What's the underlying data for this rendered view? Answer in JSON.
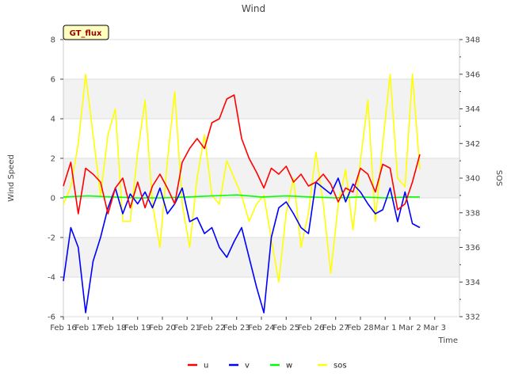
{
  "chart_data": {
    "type": "line",
    "title": "Wind",
    "xlabel": "Time",
    "ylabel": "Wind Speed",
    "y2label": "SOS",
    "badge": "GT_flux",
    "x_range_days": [
      0,
      16
    ],
    "ylim": [
      -6,
      8
    ],
    "y2lim": [
      332,
      348
    ],
    "x_ticks": [
      {
        "day": 0,
        "label": "Feb 16"
      },
      {
        "day": 1,
        "label": "Feb 17"
      },
      {
        "day": 2,
        "label": "Feb 18"
      },
      {
        "day": 3,
        "label": "Feb 19"
      },
      {
        "day": 4,
        "label": "Feb 20"
      },
      {
        "day": 5,
        "label": "Feb 21"
      },
      {
        "day": 6,
        "label": "Feb 22"
      },
      {
        "day": 7,
        "label": "Feb 23"
      },
      {
        "day": 8,
        "label": "Feb 24"
      },
      {
        "day": 9,
        "label": "Feb 25"
      },
      {
        "day": 10,
        "label": "Feb 26"
      },
      {
        "day": 11,
        "label": "Feb 27"
      },
      {
        "day": 12,
        "label": "Feb 28"
      },
      {
        "day": 13,
        "label": "Mar 1"
      },
      {
        "day": 14,
        "label": "Mar 2"
      },
      {
        "day": 15,
        "label": "Mar 3"
      }
    ],
    "y_ticks": [
      "-6",
      "-4",
      "-2",
      "0",
      "2",
      "4",
      "6",
      "8"
    ],
    "y2_ticks": [
      "332",
      "334",
      "336",
      "338",
      "340",
      "342",
      "344",
      "346",
      "348"
    ],
    "legend_position": "bottom-center",
    "series": [
      {
        "name": "u",
        "axis": "left",
        "color": "#ff0000",
        "x": [
          0.0,
          0.3,
          0.6,
          0.9,
          1.2,
          1.5,
          1.8,
          2.1,
          2.4,
          2.7,
          3.0,
          3.3,
          3.6,
          3.9,
          4.2,
          4.5,
          4.8,
          5.1,
          5.4,
          5.7,
          6.0,
          6.3,
          6.6,
          6.9,
          7.2,
          7.5,
          7.8,
          8.1,
          8.4,
          8.7,
          9.0,
          9.3,
          9.6,
          9.9,
          10.2,
          10.5,
          10.8,
          11.1,
          11.4,
          11.7,
          12.0,
          12.3,
          12.6,
          12.9,
          13.2,
          13.5,
          13.8,
          14.1,
          14.4
        ],
        "y": [
          0.6,
          1.8,
          -0.8,
          1.5,
          1.2,
          0.8,
          -0.8,
          0.5,
          1.0,
          -0.5,
          0.8,
          -0.5,
          0.6,
          1.2,
          0.5,
          -0.3,
          1.8,
          2.5,
          3.0,
          2.5,
          3.8,
          4.0,
          5.0,
          5.2,
          3.0,
          2.0,
          1.3,
          0.5,
          1.5,
          1.2,
          1.6,
          0.8,
          1.2,
          0.6,
          0.8,
          1.2,
          0.7,
          -0.2,
          0.5,
          0.3,
          1.5,
          1.2,
          0.3,
          1.7,
          1.5,
          -0.6,
          -0.3,
          0.8,
          2.2
        ]
      },
      {
        "name": "v",
        "axis": "left",
        "color": "#0000ff",
        "x": [
          0.0,
          0.3,
          0.6,
          0.9,
          1.2,
          1.5,
          1.8,
          2.1,
          2.4,
          2.7,
          3.0,
          3.3,
          3.6,
          3.9,
          4.2,
          4.5,
          4.8,
          5.1,
          5.4,
          5.7,
          6.0,
          6.3,
          6.6,
          6.9,
          7.2,
          7.5,
          7.8,
          8.1,
          8.4,
          8.7,
          9.0,
          9.3,
          9.6,
          9.9,
          10.2,
          10.5,
          10.8,
          11.1,
          11.4,
          11.7,
          12.0,
          12.3,
          12.6,
          12.9,
          13.2,
          13.5,
          13.8,
          14.1,
          14.4
        ],
        "y": [
          -4.2,
          -1.5,
          -2.5,
          -5.8,
          -3.2,
          -2.0,
          -0.5,
          0.5,
          -0.8,
          0.2,
          -0.3,
          0.3,
          -0.5,
          0.5,
          -0.8,
          -0.3,
          0.5,
          -1.2,
          -1.0,
          -1.8,
          -1.5,
          -2.5,
          -3.0,
          -2.2,
          -1.5,
          -3.0,
          -4.5,
          -5.8,
          -2.0,
          -0.5,
          -0.2,
          -0.8,
          -1.5,
          -1.8,
          0.8,
          0.5,
          0.2,
          1.0,
          -0.2,
          0.7,
          0.3,
          -0.3,
          -0.8,
          -0.6,
          0.5,
          -1.2,
          0.3,
          -1.3,
          -1.5
        ]
      },
      {
        "name": "w",
        "axis": "left",
        "color": "#00ff00",
        "x": [
          0.0,
          1.0,
          2.0,
          3.0,
          4.0,
          5.0,
          6.0,
          7.0,
          8.0,
          9.0,
          10.0,
          11.0,
          12.0,
          13.0,
          14.0,
          14.4
        ],
        "y": [
          0.05,
          0.1,
          0.05,
          0.0,
          0.0,
          0.05,
          0.1,
          0.15,
          0.05,
          0.1,
          0.05,
          0.0,
          0.05,
          0.0,
          0.05,
          0.05
        ]
      },
      {
        "name": "sos",
        "axis": "right",
        "color": "#ffff00",
        "x": [
          0.0,
          0.3,
          0.6,
          0.9,
          1.2,
          1.5,
          1.8,
          2.1,
          2.4,
          2.7,
          3.0,
          3.3,
          3.6,
          3.9,
          4.2,
          4.5,
          4.8,
          5.1,
          5.4,
          5.7,
          6.0,
          6.3,
          6.6,
          6.9,
          7.2,
          7.5,
          7.8,
          8.1,
          8.4,
          8.7,
          9.0,
          9.3,
          9.6,
          9.9,
          10.2,
          10.5,
          10.8,
          11.1,
          11.4,
          11.7,
          12.0,
          12.3,
          12.6,
          12.9,
          13.2,
          13.5,
          13.8,
          14.1,
          14.4
        ],
        "y": [
          338.5,
          339.5,
          342.0,
          346.0,
          342.5,
          339.0,
          342.5,
          344.0,
          337.5,
          337.5,
          341.5,
          344.5,
          338.5,
          336.0,
          341.0,
          345.0,
          338.5,
          336.0,
          340.0,
          342.5,
          339.0,
          338.5,
          341.0,
          340.0,
          339.0,
          337.5,
          338.5,
          339.0,
          336.5,
          334.0,
          338.0,
          340.0,
          336.0,
          338.0,
          341.5,
          338.5,
          334.5,
          338.5,
          340.5,
          337.0,
          341.0,
          344.5,
          337.5,
          342.0,
          346.0,
          340.0,
          339.5,
          346.0,
          340.5
        ]
      }
    ]
  }
}
